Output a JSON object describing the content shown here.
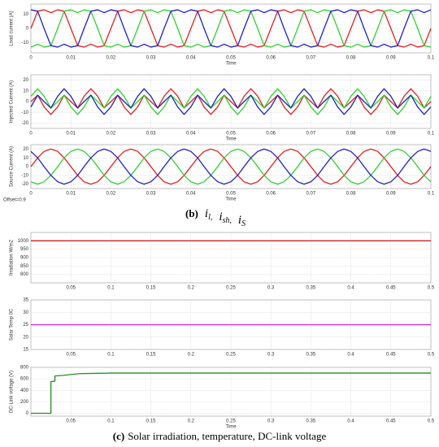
{
  "chart_data": [
    {
      "type": "line",
      "y_label": "Load current (A)",
      "x_label": "Time",
      "xlim": [
        0,
        0.1
      ],
      "xticks": [
        0,
        0.01,
        0.02,
        0.03,
        0.04,
        0.05,
        0.06,
        0.07,
        0.08,
        0.09,
        0.1
      ],
      "ylim": [
        -17,
        17
      ],
      "yticks": [
        -10,
        0,
        10
      ],
      "grid": true,
      "x": [
        0,
        0.0017,
        0.0033,
        0.005,
        0.0067,
        0.0083,
        0.01,
        0.0117,
        0.0133,
        0.015,
        0.0167,
        0.0183,
        0.02,
        0.0217,
        0.0233,
        0.025,
        0.0267,
        0.0283,
        0.03,
        0.0317,
        0.0333,
        0.035,
        0.0367,
        0.0383,
        0.04,
        0.0417,
        0.0433,
        0.045,
        0.0467,
        0.0483,
        0.05,
        0.0517,
        0.0533,
        0.055,
        0.0567,
        0.0583,
        0.06,
        0.0617,
        0.0633,
        0.065,
        0.0667,
        0.0683,
        0.07,
        0.0717,
        0.0733,
        0.075,
        0.0767,
        0.0783,
        0.08,
        0.0817,
        0.0833,
        0.085,
        0.0867,
        0.0883,
        0.09,
        0.0917,
        0.0933,
        0.095,
        0.0967,
        0.0983,
        0.1
      ],
      "series": [
        {
          "color": "#e02020",
          "values": [
            0,
            12,
            13,
            11,
            13,
            12,
            0,
            -12,
            -13,
            -11,
            -13,
            -12,
            0,
            12,
            13,
            11,
            13,
            12,
            0,
            -12,
            -13,
            -11,
            -13,
            -12,
            0,
            12,
            13,
            11,
            13,
            12,
            0,
            -12,
            -13,
            -11,
            -13,
            -12,
            0,
            12,
            13,
            11,
            13,
            12,
            0,
            -12,
            -13,
            -11,
            -13,
            -12,
            0,
            12,
            13,
            11,
            13,
            12,
            0,
            -12,
            -13,
            -11,
            -13,
            -12,
            0
          ]
        },
        {
          "color": "#30d030",
          "values": [
            -13,
            -11,
            -13,
            -12,
            0,
            12,
            13,
            11,
            13,
            12,
            0,
            -12,
            -13,
            -11,
            -13,
            -12,
            0,
            12,
            13,
            11,
            13,
            12,
            0,
            -12,
            -13,
            -11,
            -13,
            -12,
            0,
            12,
            13,
            11,
            13,
            12,
            0,
            -12,
            -13,
            -11,
            -13,
            -12,
            0,
            12,
            13,
            11,
            13,
            12,
            0,
            -12,
            -13,
            -11,
            -13,
            -12,
            0,
            12,
            13,
            11,
            13,
            12,
            0,
            -12,
            -13
          ]
        },
        {
          "color": "#2020c0",
          "values": [
            13,
            12,
            0,
            -12,
            -13,
            -11,
            -13,
            -12,
            0,
            12,
            13,
            11,
            13,
            12,
            0,
            -12,
            -13,
            -11,
            -13,
            -12,
            0,
            12,
            13,
            11,
            13,
            12,
            0,
            -12,
            -13,
            -11,
            -13,
            -12,
            0,
            12,
            13,
            11,
            13,
            12,
            0,
            -12,
            -13,
            -11,
            -13,
            -12,
            0,
            12,
            13,
            11,
            13,
            12,
            0,
            -12,
            -13,
            -11,
            -13,
            -12,
            0,
            12,
            13,
            11,
            13
          ]
        }
      ]
    },
    {
      "type": "line",
      "y_label": "Injected Current (A)",
      "x_label": "Time",
      "xlim": [
        0,
        0.1
      ],
      "xticks": [
        0,
        0.01,
        0.02,
        0.03,
        0.04,
        0.05,
        0.06,
        0.07,
        0.08,
        0.09,
        0.1
      ],
      "ylim": [
        -25,
        25
      ],
      "yticks": [
        -20,
        -10,
        0,
        10,
        20
      ],
      "grid": true,
      "x": [
        0,
        0.0017,
        0.0033,
        0.005,
        0.0067,
        0.0083,
        0.01,
        0.0117,
        0.0133,
        0.015,
        0.0167,
        0.0183,
        0.02,
        0.0217,
        0.0233,
        0.025,
        0.0267,
        0.0283,
        0.03,
        0.0317,
        0.0333,
        0.035,
        0.0367,
        0.0383,
        0.04,
        0.0417,
        0.0433,
        0.045,
        0.0467,
        0.0483,
        0.05,
        0.0517,
        0.0533,
        0.055,
        0.0567,
        0.0583,
        0.06,
        0.0617,
        0.0633,
        0.065,
        0.0667,
        0.0683,
        0.07,
        0.0717,
        0.0733,
        0.075,
        0.0767,
        0.0783,
        0.08,
        0.0817,
        0.0833,
        0.085,
        0.0867,
        0.0883,
        0.09,
        0.0917,
        0.0933,
        0.095,
        0.0967,
        0.0983,
        0.1
      ],
      "series": [
        {
          "color": "#e02020",
          "values": [
            0,
            6,
            -5,
            -12,
            -5,
            6,
            0,
            -6,
            5,
            12,
            5,
            -6,
            0,
            6,
            -5,
            -12,
            -5,
            6,
            0,
            -6,
            5,
            12,
            5,
            -6,
            0,
            6,
            -5,
            -12,
            -5,
            6,
            0,
            -6,
            5,
            12,
            5,
            -6,
            0,
            6,
            -5,
            -12,
            -5,
            6,
            0,
            -6,
            5,
            12,
            5,
            -6,
            0,
            6,
            -5,
            -12,
            -5,
            6,
            0,
            -6,
            5,
            12,
            5,
            -6,
            0
          ]
        },
        {
          "color": "#30d030",
          "values": [
            5,
            12,
            5,
            -6,
            0,
            6,
            -5,
            -12,
            -5,
            6,
            0,
            -6,
            5,
            12,
            5,
            -6,
            0,
            6,
            -5,
            -12,
            -5,
            6,
            0,
            -6,
            5,
            12,
            5,
            -6,
            0,
            6,
            -5,
            -12,
            -5,
            6,
            0,
            -6,
            5,
            12,
            5,
            -6,
            0,
            6,
            -5,
            -12,
            -5,
            6,
            0,
            -6,
            5,
            12,
            5,
            -6,
            0,
            6,
            -5,
            -12,
            -5,
            6,
            0,
            -6,
            5
          ]
        },
        {
          "color": "#2020c0",
          "values": [
            -5,
            6,
            0,
            -6,
            5,
            12,
            5,
            -6,
            0,
            6,
            -5,
            -12,
            -5,
            6,
            0,
            -6,
            5,
            12,
            5,
            -6,
            0,
            6,
            -5,
            -12,
            -5,
            6,
            0,
            -6,
            5,
            12,
            5,
            -6,
            0,
            6,
            -5,
            -12,
            -5,
            6,
            0,
            -6,
            5,
            12,
            5,
            -6,
            0,
            6,
            -5,
            -12,
            -5,
            6,
            0,
            -6,
            5,
            12,
            5,
            -6,
            0,
            6,
            -5,
            -12,
            -5
          ]
        }
      ]
    },
    {
      "type": "line",
      "y_label": "Source Current (A)",
      "x_label": "Time",
      "note": "Offset=0.9",
      "xlim": [
        0,
        0.1
      ],
      "xticks": [
        0,
        0.01,
        0.02,
        0.03,
        0.04,
        0.05,
        0.06,
        0.07,
        0.08,
        0.09,
        0.1
      ],
      "ylim": [
        -25,
        25
      ],
      "yticks": [
        -20,
        -10,
        0,
        10,
        20
      ],
      "grid": true,
      "x": [
        0,
        0.0017,
        0.0033,
        0.005,
        0.0067,
        0.0083,
        0.01,
        0.0117,
        0.0133,
        0.015,
        0.0167,
        0.0183,
        0.02,
        0.0217,
        0.0233,
        0.025,
        0.0267,
        0.0283,
        0.03,
        0.0317,
        0.0333,
        0.035,
        0.0367,
        0.0383,
        0.04,
        0.0417,
        0.0433,
        0.045,
        0.0467,
        0.0483,
        0.05,
        0.0517,
        0.0533,
        0.055,
        0.0567,
        0.0583,
        0.06,
        0.0617,
        0.0633,
        0.065,
        0.0667,
        0.0683,
        0.07,
        0.0717,
        0.0733,
        0.075,
        0.0767,
        0.0783,
        0.08,
        0.0817,
        0.0833,
        0.085,
        0.0867,
        0.0883,
        0.09,
        0.0917,
        0.0933,
        0.095,
        0.0967,
        0.0983,
        0.1
      ],
      "series": [
        {
          "color": "#e02020",
          "values": [
            0,
            10,
            17.3,
            20,
            17.3,
            10,
            0,
            -10,
            -17.3,
            -20,
            -17.3,
            -10,
            0,
            10,
            17.3,
            20,
            17.3,
            10,
            0,
            -10,
            -17.3,
            -20,
            -17.3,
            -10,
            0,
            10,
            17.3,
            20,
            17.3,
            10,
            0,
            -10,
            -17.3,
            -20,
            -17.3,
            -10,
            0,
            10,
            17.3,
            20,
            17.3,
            10,
            0,
            -10,
            -17.3,
            -20,
            -17.3,
            -10,
            0,
            10,
            17.3,
            20,
            17.3,
            10,
            0,
            -10,
            -17.3,
            -20,
            -17.3,
            -10,
            0
          ]
        },
        {
          "color": "#30d030",
          "values": [
            -17.3,
            -20,
            -17.3,
            -10,
            0,
            10,
            17.3,
            20,
            17.3,
            10,
            0,
            -10,
            -17.3,
            -20,
            -17.3,
            -10,
            0,
            10,
            17.3,
            20,
            17.3,
            10,
            0,
            -10,
            -17.3,
            -20,
            -17.3,
            -10,
            0,
            10,
            17.3,
            20,
            17.3,
            10,
            0,
            -10,
            -17.3,
            -20,
            -17.3,
            -10,
            0,
            10,
            17.3,
            20,
            17.3,
            10,
            0,
            -10,
            -17.3,
            -20,
            -17.3,
            -10,
            0,
            10,
            17.3,
            20,
            17.3,
            10,
            0,
            -10,
            -17.3
          ]
        },
        {
          "color": "#2020c0",
          "values": [
            17.3,
            10,
            0,
            -10,
            -17.3,
            -20,
            -17.3,
            -10,
            0,
            10,
            17.3,
            20,
            17.3,
            10,
            0,
            -10,
            -17.3,
            -20,
            -17.3,
            -10,
            0,
            10,
            17.3,
            20,
            17.3,
            10,
            0,
            -10,
            -17.3,
            -20,
            -17.3,
            -10,
            0,
            10,
            17.3,
            20,
            17.3,
            10,
            0,
            -10,
            -17.3,
            -20,
            -17.3,
            -10,
            0,
            10,
            17.3,
            20,
            17.3,
            10,
            0,
            -10,
            -17.3,
            -20,
            -17.3,
            -10,
            0,
            10,
            17.3,
            20,
            17.3
          ]
        }
      ]
    },
    {
      "type": "line",
      "y_label": "Irradiation W/m2",
      "x_label": "",
      "xlim": [
        0,
        0.5
      ],
      "xticks": [
        0.05,
        0.1,
        0.15,
        0.2,
        0.25,
        0.3,
        0.35,
        0.4,
        0.45,
        0.5
      ],
      "ylim": [
        750,
        1050
      ],
      "yticks": [
        800,
        850,
        900,
        950,
        1000
      ],
      "grid": true,
      "x": [
        0,
        0.5
      ],
      "series": [
        {
          "color": "#d02020",
          "values": [
            1000,
            1000
          ]
        }
      ]
    },
    {
      "type": "line",
      "y_label": "Solar Temp 0C",
      "x_label": "",
      "xlim": [
        0,
        0.5
      ],
      "xticks": [
        0.05,
        0.1,
        0.15,
        0.2,
        0.25,
        0.3,
        0.35,
        0.4,
        0.45,
        0.5
      ],
      "ylim": [
        15,
        35
      ],
      "yticks": [
        15,
        20,
        25,
        30,
        35
      ],
      "grid": true,
      "x": [
        0,
        0.5
      ],
      "series": [
        {
          "color": "#e020e0",
          "values": [
            25,
            25
          ]
        }
      ]
    },
    {
      "type": "line",
      "y_label": "DC-Link voltage (V)",
      "x_label": "Time",
      "xlim": [
        0,
        0.5
      ],
      "xticks": [
        0.05,
        0.1,
        0.15,
        0.2,
        0.25,
        0.3,
        0.35,
        0.4,
        0.45,
        0.5
      ],
      "ylim": [
        -50,
        800
      ],
      "yticks": [
        0,
        200,
        400,
        600,
        800
      ],
      "grid": true,
      "x": [
        0,
        0.025,
        0.025,
        0.03,
        0.03,
        0.04,
        0.06,
        0.1,
        0.5
      ],
      "series": [
        {
          "color": "#209020",
          "values": [
            0,
            0,
            550,
            560,
            650,
            660,
            690,
            700,
            700
          ]
        }
      ]
    }
  ],
  "caption_b": {
    "label": "(b)",
    "terms": [
      [
        "i",
        "l,"
      ],
      [
        "i",
        "sh,"
      ],
      [
        "i",
        "S"
      ]
    ]
  },
  "caption_c": {
    "label": "(c)",
    "text": "Solar irradiation, temperature, DC-link voltage"
  }
}
